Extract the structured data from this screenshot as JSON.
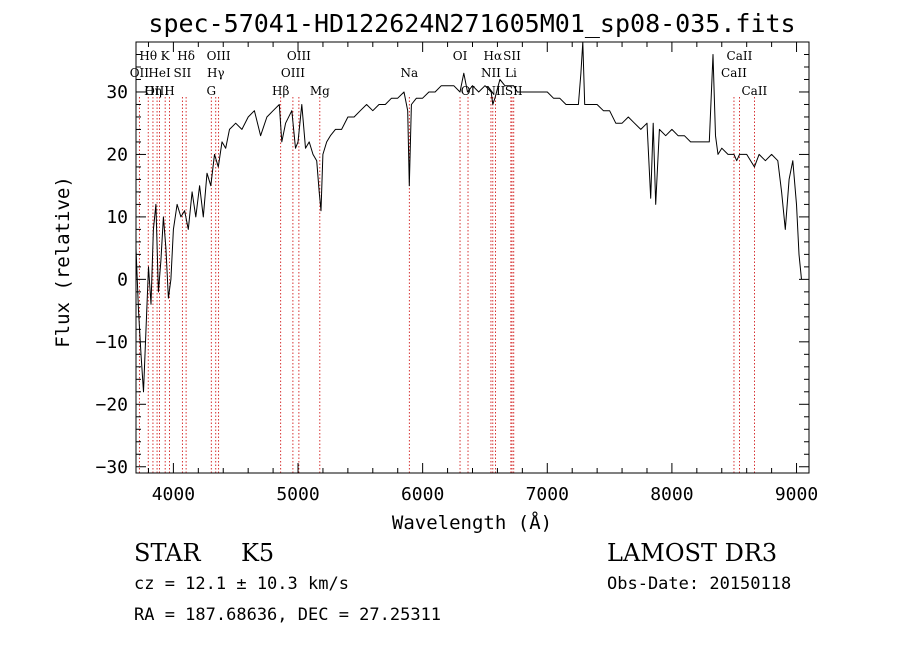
{
  "chart_data": {
    "type": "line",
    "title": "spec-57041-HD122624N271605M01_sp08-035.fits",
    "xlabel": "Wavelength (Å)",
    "ylabel": "Flux (relative)",
    "xlim": [
      3700,
      9100
    ],
    "ylim": [
      -31,
      38
    ],
    "xticks": [
      {
        "value": 4000,
        "label": "4000"
      },
      {
        "value": 5000,
        "label": "5000"
      },
      {
        "value": 6000,
        "label": "6000"
      },
      {
        "value": 7000,
        "label": "7000"
      },
      {
        "value": 8000,
        "label": "8000"
      },
      {
        "value": 9000,
        "label": "9000"
      }
    ],
    "yticks": [
      {
        "value": -30,
        "label": "−30"
      },
      {
        "value": -20,
        "label": "−20"
      },
      {
        "value": -10,
        "label": "−10"
      },
      {
        "value": 0,
        "label": "0"
      },
      {
        "value": 10,
        "label": "10"
      },
      {
        "value": 20,
        "label": "20"
      },
      {
        "value": 30,
        "label": "30"
      }
    ],
    "series": [
      {
        "color": "#000000",
        "x": [
          3700,
          3720,
          3740,
          3760,
          3780,
          3800,
          3820,
          3840,
          3860,
          3880,
          3900,
          3920,
          3940,
          3960,
          3980,
          4000,
          4030,
          4060,
          4090,
          4120,
          4150,
          4180,
          4210,
          4240,
          4270,
          4300,
          4330,
          4360,
          4390,
          4420,
          4450,
          4500,
          4550,
          4600,
          4650,
          4700,
          4750,
          4800,
          4850,
          4870,
          4900,
          4950,
          4980,
          5000,
          5030,
          5060,
          5090,
          5120,
          5150,
          5170,
          5184,
          5200,
          5230,
          5260,
          5300,
          5350,
          5400,
          5450,
          5500,
          5550,
          5600,
          5650,
          5700,
          5750,
          5800,
          5850,
          5880,
          5893,
          5910,
          5950,
          6000,
          6050,
          6100,
          6150,
          6200,
          6250,
          6300,
          6330,
          6360,
          6400,
          6450,
          6500,
          6550,
          6563,
          6580,
          6620,
          6660,
          6700,
          6730,
          6760,
          6800,
          6850,
          6900,
          6950,
          7000,
          7050,
          7100,
          7150,
          7200,
          7250,
          7270,
          7285,
          7300,
          7350,
          7400,
          7450,
          7500,
          7550,
          7600,
          7650,
          7700,
          7750,
          7800,
          7830,
          7850,
          7870,
          7900,
          7950,
          8000,
          8050,
          8100,
          8150,
          8200,
          8250,
          8300,
          8330,
          8350,
          8370,
          8400,
          8450,
          8498,
          8520,
          8542,
          8570,
          8600,
          8662,
          8700,
          8750,
          8800,
          8850,
          8880,
          8910,
          8940,
          8970,
          9000,
          9020,
          9040
        ],
        "y": [
          5,
          -5,
          -12,
          -18,
          -8,
          2,
          -4,
          8,
          12,
          -2,
          3,
          10,
          5,
          -3,
          0,
          8,
          12,
          10,
          11,
          8,
          14,
          10,
          15,
          10,
          17,
          15,
          20,
          18,
          22,
          21,
          24,
          25,
          24,
          26,
          27,
          23,
          26,
          27,
          28,
          22,
          25,
          27,
          21,
          22,
          28,
          21,
          22,
          20,
          19,
          14,
          11,
          20,
          22,
          23,
          24,
          24,
          26,
          26,
          27,
          28,
          27,
          28,
          28,
          29,
          29,
          30,
          27,
          15,
          28,
          29,
          29,
          30,
          30,
          31,
          31,
          31,
          30,
          33,
          30,
          31,
          30,
          31,
          30,
          28,
          29,
          32,
          31,
          31,
          31,
          30,
          30,
          30,
          30,
          30,
          30,
          29,
          29,
          28,
          28,
          28,
          33,
          38,
          28,
          28,
          28,
          27,
          27,
          25,
          25,
          26,
          25,
          24,
          25,
          13,
          25,
          12,
          24,
          23,
          24,
          23,
          23,
          22,
          22,
          22,
          22,
          36,
          23,
          20,
          21,
          20,
          20,
          19,
          20,
          20,
          20,
          18,
          20,
          19,
          20,
          19,
          14,
          8,
          16,
          19,
          12,
          4,
          0
        ]
      }
    ],
    "spectral_lines": [
      {
        "label": "Hθ",
        "wavelength": 3798,
        "row": 0
      },
      {
        "label": "OII",
        "wavelength": 3727,
        "row": 1
      },
      {
        "label": "OIII",
        "wavelength": 3869,
        "row": 2
      },
      {
        "label": "Hη",
        "wavelength": 3836,
        "row": 2
      },
      {
        "label": "K",
        "wavelength": 3934,
        "row": 0
      },
      {
        "label": "HeI",
        "wavelength": 3889,
        "row": 1
      },
      {
        "label": "H",
        "wavelength": 3969,
        "row": 2
      },
      {
        "label": "Hδ",
        "wavelength": 4102,
        "row": 0
      },
      {
        "label": "SII",
        "wavelength": 4072,
        "row": 1
      },
      {
        "label": "OIII",
        "wavelength": 4363,
        "row": 0
      },
      {
        "label": "Hγ",
        "wavelength": 4340,
        "row": 1
      },
      {
        "label": "G",
        "wavelength": 4304,
        "row": 2
      },
      {
        "label": "OIII",
        "wavelength": 5007,
        "row": 0
      },
      {
        "label": "OIII",
        "wavelength": 4959,
        "row": 1
      },
      {
        "label": "Hβ",
        "wavelength": 4861,
        "row": 2
      },
      {
        "label": "Mg",
        "wavelength": 5175,
        "row": 2
      },
      {
        "label": "Na",
        "wavelength": 5893,
        "row": 1
      },
      {
        "label": "OI",
        "wavelength": 6300,
        "row": 0
      },
      {
        "label": "OI",
        "wavelength": 6364,
        "row": 2
      },
      {
        "label": "Hα",
        "wavelength": 6563,
        "row": 0
      },
      {
        "label": "SII",
        "wavelength": 6717,
        "row": 0
      },
      {
        "label": "NII",
        "wavelength": 6548,
        "row": 1
      },
      {
        "label": "Li",
        "wavelength": 6708,
        "row": 1
      },
      {
        "label": "NII",
        "wavelength": 6584,
        "row": 2
      },
      {
        "label": "SII",
        "wavelength": 6731,
        "row": 2
      },
      {
        "label": "CaII",
        "wavelength": 8542,
        "row": 0
      },
      {
        "label": "CaII",
        "wavelength": 8498,
        "row": 1
      },
      {
        "label": "CaII",
        "wavelength": 8662,
        "row": 2
      }
    ]
  },
  "info": {
    "class": "STAR",
    "subclass": "K5",
    "survey": "LAMOST DR3",
    "cz": "cz = 12.1 ± 10.3 km/s",
    "obs_date": "Obs-Date: 20150118",
    "coords": "RA = 187.68636, DEC =  27.25311"
  }
}
